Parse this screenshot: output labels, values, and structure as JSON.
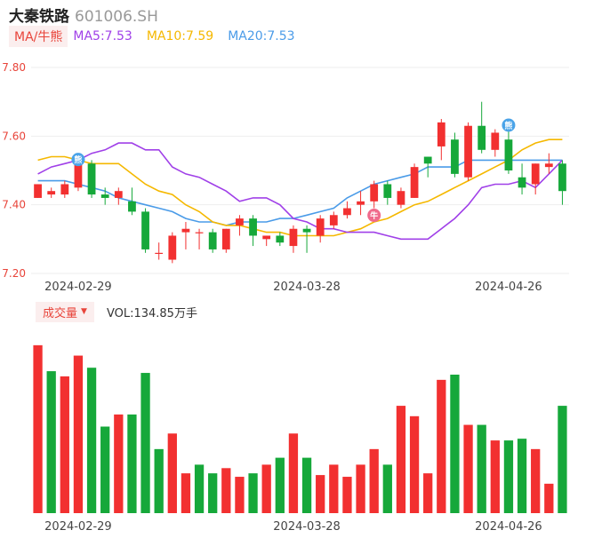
{
  "header": {
    "name": "大秦铁路",
    "code": "601006.SH"
  },
  "ma_legend": {
    "tag": "MA/牛熊",
    "items": [
      {
        "label": "MA5:7.53",
        "color": "#a040e8"
      },
      {
        "label": "MA10:7.59",
        "color": "#f5b800"
      },
      {
        "label": "MA20:7.53",
        "color": "#4a9be8"
      }
    ]
  },
  "volume_legend": {
    "tag": "成交量",
    "value_label": "VOL:134.85万手"
  },
  "colors": {
    "up": "#f23030",
    "down": "#16a83a",
    "grid": "#eeeeee",
    "axis_text": "#666666",
    "price_text": "#e8443a"
  },
  "markers": [
    {
      "index": 3,
      "text": "熊",
      "color": "#4aa3e8"
    },
    {
      "index": 25,
      "text": "牛",
      "color": "#f06a8c"
    },
    {
      "index": 35,
      "text": "熊",
      "color": "#4aa3e8"
    }
  ],
  "chart_data": [
    {
      "type": "candlestick",
      "title": "",
      "ylim": [
        7.2,
        7.8
      ],
      "y_ticks": [
        "7.80",
        "7.60",
        "7.40",
        "7.20"
      ],
      "x_ticks": [
        {
          "index": 3,
          "label": "2024-02-29"
        },
        {
          "index": 20,
          "label": "2024-03-28"
        },
        {
          "index": 35,
          "label": "2024-04-26"
        }
      ],
      "candles": [
        {
          "o": 7.42,
          "c": 7.46,
          "h": 7.46,
          "l": 7.42
        },
        {
          "o": 7.43,
          "c": 7.44,
          "h": 7.45,
          "l": 7.42
        },
        {
          "o": 7.43,
          "c": 7.46,
          "h": 7.47,
          "l": 7.42
        },
        {
          "o": 7.45,
          "c": 7.54,
          "h": 7.55,
          "l": 7.44
        },
        {
          "o": 7.52,
          "c": 7.43,
          "h": 7.53,
          "l": 7.42
        },
        {
          "o": 7.43,
          "c": 7.42,
          "h": 7.45,
          "l": 7.4
        },
        {
          "o": 7.42,
          "c": 7.44,
          "h": 7.45,
          "l": 7.4
        },
        {
          "o": 7.41,
          "c": 7.38,
          "h": 7.45,
          "l": 7.37
        },
        {
          "o": 7.38,
          "c": 7.27,
          "h": 7.39,
          "l": 7.26
        },
        {
          "o": 7.26,
          "c": 7.26,
          "h": 7.29,
          "l": 7.24
        },
        {
          "o": 7.24,
          "c": 7.31,
          "h": 7.32,
          "l": 7.23
        },
        {
          "o": 7.32,
          "c": 7.33,
          "h": 7.35,
          "l": 7.27
        },
        {
          "o": 7.32,
          "c": 7.32,
          "h": 7.33,
          "l": 7.27
        },
        {
          "o": 7.32,
          "c": 7.27,
          "h": 7.33,
          "l": 7.26
        },
        {
          "o": 7.27,
          "c": 7.33,
          "h": 7.33,
          "l": 7.26
        },
        {
          "o": 7.34,
          "c": 7.36,
          "h": 7.37,
          "l": 7.31
        },
        {
          "o": 7.36,
          "c": 7.31,
          "h": 7.37,
          "l": 7.28
        },
        {
          "o": 7.3,
          "c": 7.31,
          "h": 7.31,
          "l": 7.28
        },
        {
          "o": 7.31,
          "c": 7.29,
          "h": 7.32,
          "l": 7.28
        },
        {
          "o": 7.28,
          "c": 7.33,
          "h": 7.34,
          "l": 7.26
        },
        {
          "o": 7.33,
          "c": 7.32,
          "h": 7.34,
          "l": 7.26
        },
        {
          "o": 7.31,
          "c": 7.36,
          "h": 7.37,
          "l": 7.29
        },
        {
          "o": 7.34,
          "c": 7.37,
          "h": 7.38,
          "l": 7.33
        },
        {
          "o": 7.37,
          "c": 7.39,
          "h": 7.41,
          "l": 7.36
        },
        {
          "o": 7.4,
          "c": 7.41,
          "h": 7.44,
          "l": 7.37
        },
        {
          "o": 7.41,
          "c": 7.46,
          "h": 7.47,
          "l": 7.39
        },
        {
          "o": 7.46,
          "c": 7.42,
          "h": 7.47,
          "l": 7.4
        },
        {
          "o": 7.4,
          "c": 7.44,
          "h": 7.45,
          "l": 7.39
        },
        {
          "o": 7.42,
          "c": 7.51,
          "h": 7.52,
          "l": 7.42
        },
        {
          "o": 7.54,
          "c": 7.52,
          "h": 7.54,
          "l": 7.48
        },
        {
          "o": 7.57,
          "c": 7.64,
          "h": 7.65,
          "l": 7.53
        },
        {
          "o": 7.59,
          "c": 7.49,
          "h": 7.61,
          "l": 7.48
        },
        {
          "o": 7.48,
          "c": 7.63,
          "h": 7.64,
          "l": 7.47
        },
        {
          "o": 7.63,
          "c": 7.56,
          "h": 7.7,
          "l": 7.55
        },
        {
          "o": 7.56,
          "c": 7.61,
          "h": 7.62,
          "l": 7.54
        },
        {
          "o": 7.59,
          "c": 7.5,
          "h": 7.65,
          "l": 7.49
        },
        {
          "o": 7.48,
          "c": 7.45,
          "h": 7.52,
          "l": 7.43
        },
        {
          "o": 7.46,
          "c": 7.52,
          "h": 7.52,
          "l": 7.43
        },
        {
          "o": 7.51,
          "c": 7.52,
          "h": 7.55,
          "l": 7.49
        },
        {
          "o": 7.52,
          "c": 7.44,
          "h": 7.53,
          "l": 7.4
        }
      ],
      "ma5": [
        7.49,
        7.51,
        7.52,
        7.53,
        7.55,
        7.56,
        7.58,
        7.58,
        7.56,
        7.56,
        7.51,
        7.49,
        7.48,
        7.46,
        7.44,
        7.41,
        7.42,
        7.42,
        7.4,
        7.36,
        7.35,
        7.33,
        7.33,
        7.32,
        7.32,
        7.32,
        7.31,
        7.3,
        7.3,
        7.3,
        7.33,
        7.36,
        7.4,
        7.45,
        7.46,
        7.46,
        7.47,
        7.45,
        7.49,
        7.53
      ],
      "ma10": [
        7.53,
        7.54,
        7.54,
        7.53,
        7.52,
        7.52,
        7.52,
        7.49,
        7.46,
        7.44,
        7.43,
        7.4,
        7.38,
        7.35,
        7.34,
        7.34,
        7.33,
        7.32,
        7.32,
        7.31,
        7.31,
        7.31,
        7.31,
        7.32,
        7.33,
        7.35,
        7.36,
        7.38,
        7.4,
        7.41,
        7.43,
        7.45,
        7.47,
        7.49,
        7.51,
        7.53,
        7.56,
        7.58,
        7.59,
        7.59
      ],
      "ma20": [
        7.47,
        7.47,
        7.47,
        7.46,
        7.45,
        7.44,
        7.42,
        7.41,
        7.4,
        7.39,
        7.38,
        7.36,
        7.35,
        7.35,
        7.34,
        7.35,
        7.35,
        7.35,
        7.36,
        7.36,
        7.37,
        7.38,
        7.39,
        7.42,
        7.44,
        7.46,
        7.47,
        7.48,
        7.49,
        7.51,
        7.51,
        7.51,
        7.53,
        7.53,
        7.53,
        7.53,
        7.53,
        7.53,
        7.53,
        7.53
      ]
    },
    {
      "type": "bar",
      "title": "",
      "ylim": [
        0,
        100
      ],
      "values": [
        97,
        82,
        79,
        91,
        84,
        50,
        57,
        57,
        81,
        37,
        46,
        23,
        28,
        23,
        26,
        21,
        23,
        28,
        32,
        46,
        32,
        22,
        28,
        21,
        28,
        37,
        28,
        62,
        56,
        23,
        77,
        80,
        51,
        51,
        42,
        42,
        43,
        37,
        17,
        62
      ],
      "directions": [
        "up",
        "down",
        "up",
        "up",
        "down",
        "down",
        "up",
        "down",
        "down",
        "down",
        "up",
        "up",
        "down",
        "down",
        "up",
        "up",
        "down",
        "up",
        "down",
        "up",
        "down",
        "up",
        "up",
        "up",
        "up",
        "up",
        "down",
        "up",
        "up",
        "up",
        "up",
        "down",
        "up",
        "down",
        "up",
        "down",
        "down",
        "up",
        "up",
        "down"
      ]
    }
  ]
}
